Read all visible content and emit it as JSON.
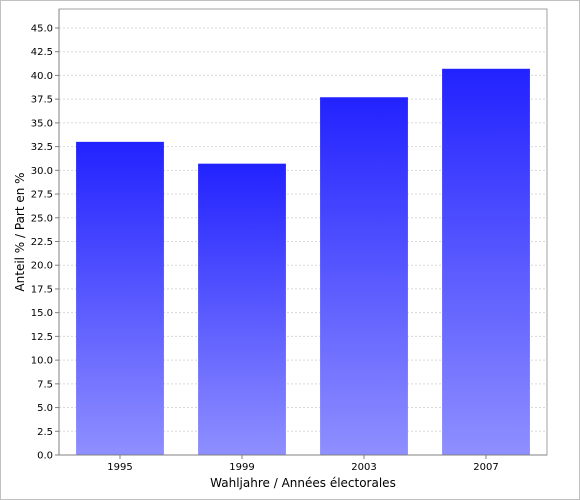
{
  "chart_data": {
    "type": "bar",
    "categories": [
      "1995",
      "1999",
      "2003",
      "2007"
    ],
    "values": [
      33.0,
      30.7,
      37.7,
      40.7
    ],
    "title": "",
    "xlabel": "Wahljahre / Années électorales",
    "ylabel": "Anteil % / Part en %",
    "ylim": [
      0,
      47
    ],
    "yticks": [
      0.0,
      2.5,
      5.0,
      7.5,
      10.0,
      12.5,
      15.0,
      17.5,
      20.0,
      22.5,
      25.0,
      27.5,
      30.0,
      32.5,
      35.0,
      37.5,
      40.0,
      42.5,
      45.0
    ],
    "grid": true,
    "legend": "none",
    "colors": {
      "bar_top": "#2222ff",
      "bar_bottom": "#8f8fff",
      "plot_bg": "#ffffff",
      "frame": "#c0c0c0",
      "grid": "#d8d8d8"
    }
  }
}
